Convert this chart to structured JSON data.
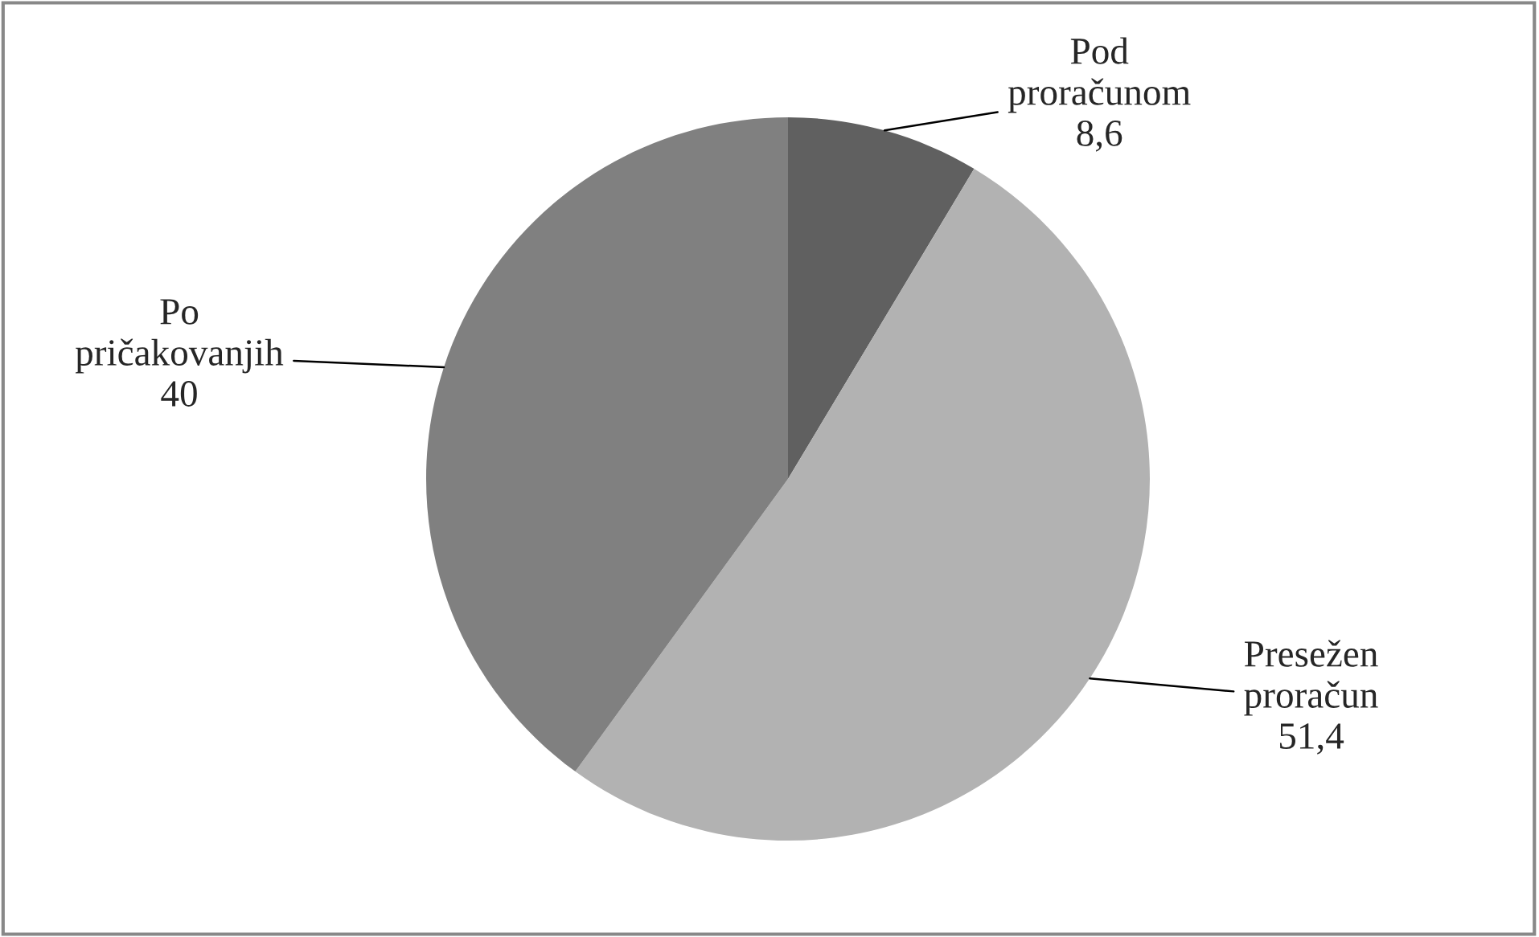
{
  "chart_data": {
    "type": "pie",
    "categories": [
      "Pod proračunom",
      "Presežen proračun",
      "Po pričakovanjih"
    ],
    "values": [
      8.6,
      51.4,
      40
    ],
    "value_labels": [
      "8,6",
      "51,4",
      "40"
    ],
    "colors": [
      "#606060",
      "#b2b2b2",
      "#808080"
    ],
    "legend": false
  }
}
